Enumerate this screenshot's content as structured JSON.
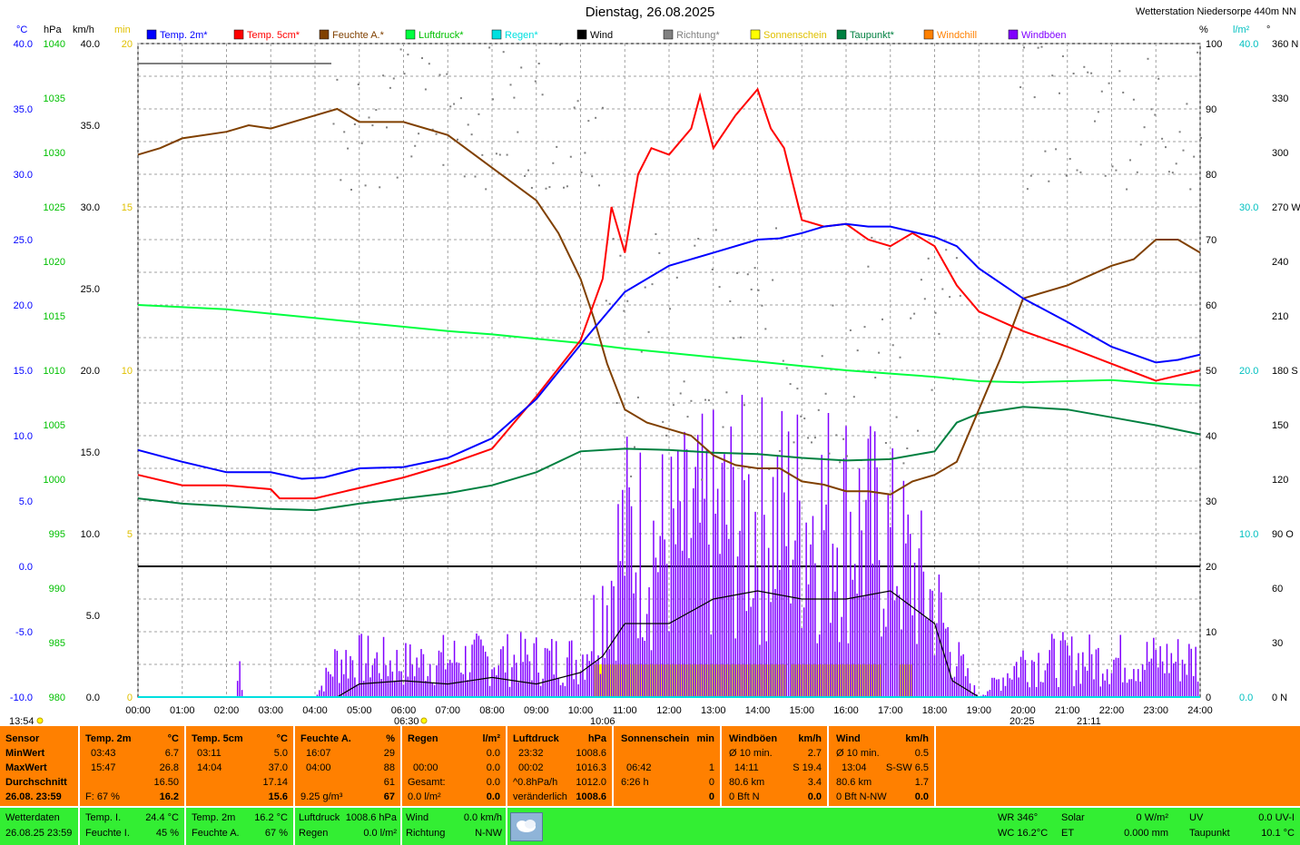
{
  "title": "Dienstag, 26.08.2025",
  "station": "Wetterstation Niedersorpe 440m NN",
  "legend": [
    {
      "label": "Temp. 2m*",
      "color": "#0000ff"
    },
    {
      "label": "Temp. 5cm*",
      "color": "#ff0000"
    },
    {
      "label": "Feuchte A.*",
      "color": "#804000"
    },
    {
      "label": "Luftdruck*",
      "color": "#00ff40"
    },
    {
      "label": "Regen*",
      "color": "#00e0e0"
    },
    {
      "label": "Wind",
      "color": "#000000"
    },
    {
      "label": "Richtung*",
      "color": "#808080"
    },
    {
      "label": "Sonnenschein",
      "color": "#ffff00"
    },
    {
      "label": "Taupunkt*",
      "color": "#008040"
    },
    {
      "label": "Windchill",
      "color": "#ff8000"
    },
    {
      "label": "Windböen",
      "color": "#8000ff"
    }
  ],
  "axes": {
    "temp": {
      "unit": "°C",
      "color": "#0000ff",
      "ticks": [
        "40.0",
        "35.0",
        "30.0",
        "25.0",
        "20.0",
        "15.0",
        "10.0",
        "5.0",
        "0.0",
        "-5.0",
        "-10.0"
      ]
    },
    "pressure": {
      "unit": "hPa",
      "color": "#00c000",
      "ticks": [
        "1040",
        "1035",
        "1030",
        "1025",
        "1020",
        "1015",
        "1010",
        "1005",
        "1000",
        "995",
        "990",
        "985",
        "980"
      ]
    },
    "wind": {
      "unit": "km/h",
      "color": "#000000",
      "ticks": [
        "40.0",
        "35.0",
        "30.0",
        "25.0",
        "20.0",
        "15.0",
        "10.0",
        "5.0",
        "0.0"
      ]
    },
    "sun": {
      "unit": "min",
      "color": "#e0c000",
      "ticks": [
        "20",
        "15",
        "10",
        "5",
        "0"
      ]
    },
    "humidity": {
      "unit": "%",
      "color": "#000000",
      "ticks": [
        "100",
        "90",
        "80",
        "70",
        "60",
        "50",
        "40",
        "30",
        "20",
        "10",
        "0"
      ]
    },
    "rain": {
      "unit": "l/m²",
      "color": "#00c0c0",
      "ticks": [
        "40.0",
        "30.0",
        "20.0",
        "10.0",
        "0.0"
      ]
    },
    "direction": {
      "unit": "°",
      "color": "#000000",
      "ticks": [
        "360 N",
        "330",
        "300",
        "270 W",
        "240",
        "210",
        "180 S",
        "150",
        "120",
        "90 O",
        "60",
        "30",
        "0 N"
      ]
    },
    "x_ticks": [
      "00:00",
      "01:00",
      "02:00",
      "03:00",
      "04:00",
      "05:00",
      "06:00",
      "07:00",
      "08:00",
      "09:00",
      "10:00",
      "11:00",
      "12:00",
      "13:00",
      "14:00",
      "15:00",
      "16:00",
      "17:00",
      "18:00",
      "19:00",
      "20:00",
      "21:00",
      "22:00",
      "23:00",
      "24:00"
    ]
  },
  "markers": {
    "start": "13:54",
    "sunrise": "06:30",
    "sunmark": "10:06",
    "sunset": "20:25",
    "dusk": "21:11"
  },
  "chart_data": {
    "type": "line",
    "title": "Dienstag, 26.08.2025",
    "x_unit": "hour of day",
    "xlim": [
      0,
      24
    ],
    "series": [
      {
        "name": "Temp. 2m*",
        "axis": "°C",
        "color": "#0000ff",
        "points": [
          [
            0,
            8.9
          ],
          [
            1,
            8.0
          ],
          [
            2,
            7.2
          ],
          [
            3,
            7.2
          ],
          [
            3.7,
            6.7
          ],
          [
            4.2,
            6.8
          ],
          [
            5,
            7.5
          ],
          [
            6,
            7.6
          ],
          [
            7,
            8.3
          ],
          [
            8,
            9.8
          ],
          [
            9,
            12.8
          ],
          [
            9.6,
            15.3
          ],
          [
            10.2,
            17.8
          ],
          [
            11,
            21.0
          ],
          [
            12,
            23.0
          ],
          [
            13,
            24.0
          ],
          [
            14,
            25.0
          ],
          [
            14.5,
            25.1
          ],
          [
            15,
            25.5
          ],
          [
            15.5,
            26.0
          ],
          [
            16,
            26.2
          ],
          [
            16.5,
            26.0
          ],
          [
            17,
            26.0
          ],
          [
            17.5,
            25.6
          ],
          [
            18,
            25.2
          ],
          [
            18.5,
            24.5
          ],
          [
            19,
            22.8
          ],
          [
            20,
            20.5
          ],
          [
            21,
            18.7
          ],
          [
            22,
            16.8
          ],
          [
            22.5,
            16.2
          ],
          [
            23,
            15.6
          ],
          [
            23.5,
            15.8
          ],
          [
            24,
            16.2
          ]
        ]
      },
      {
        "name": "Temp. 5cm*",
        "axis": "°C",
        "color": "#ff0000",
        "points": [
          [
            0,
            7.0
          ],
          [
            1,
            6.2
          ],
          [
            2,
            6.2
          ],
          [
            3,
            5.9
          ],
          [
            3.2,
            5.2
          ],
          [
            4,
            5.2
          ],
          [
            5,
            6.0
          ],
          [
            6,
            6.8
          ],
          [
            7,
            7.8
          ],
          [
            8,
            9.0
          ],
          [
            9,
            13.0
          ],
          [
            10,
            17.3
          ],
          [
            10.5,
            22.0
          ],
          [
            10.7,
            27.5
          ],
          [
            11.0,
            24.0
          ],
          [
            11.3,
            30.0
          ],
          [
            11.6,
            32.0
          ],
          [
            12,
            31.5
          ],
          [
            12.5,
            33.5
          ],
          [
            12.7,
            36.0
          ],
          [
            13,
            32.0
          ],
          [
            13.5,
            34.5
          ],
          [
            14.0,
            36.5
          ],
          [
            14.3,
            33.5
          ],
          [
            14.6,
            32.0
          ],
          [
            15,
            26.5
          ],
          [
            15.5,
            26.0
          ],
          [
            16,
            26.2
          ],
          [
            16.5,
            25.0
          ],
          [
            17,
            24.5
          ],
          [
            17.5,
            25.5
          ],
          [
            18,
            24.5
          ],
          [
            18.5,
            21.5
          ],
          [
            19,
            19.5
          ],
          [
            20,
            18.0
          ],
          [
            21,
            16.8
          ],
          [
            22,
            15.5
          ],
          [
            23,
            14.2
          ],
          [
            24,
            15.0
          ]
        ]
      },
      {
        "name": "Feuchte A.*",
        "axis": "%",
        "color": "#804000",
        "points": [
          [
            0,
            83
          ],
          [
            0.5,
            84
          ],
          [
            1,
            85.5
          ],
          [
            2,
            86.5
          ],
          [
            2.5,
            87.5
          ],
          [
            3,
            87
          ],
          [
            4,
            89
          ],
          [
            4.5,
            90
          ],
          [
            5,
            88
          ],
          [
            6,
            88
          ],
          [
            7,
            86
          ],
          [
            8,
            81
          ],
          [
            9,
            76
          ],
          [
            9.5,
            71
          ],
          [
            10,
            64
          ],
          [
            10.3,
            58
          ],
          [
            10.6,
            51
          ],
          [
            11,
            44
          ],
          [
            11.5,
            42
          ],
          [
            12,
            41
          ],
          [
            12.5,
            40
          ],
          [
            13,
            37
          ],
          [
            13.5,
            35.5
          ],
          [
            14,
            35
          ],
          [
            14.5,
            35
          ],
          [
            15,
            33
          ],
          [
            15.5,
            32.5
          ],
          [
            16,
            31.5
          ],
          [
            16.5,
            31.5
          ],
          [
            17,
            31
          ],
          [
            17.5,
            33
          ],
          [
            18,
            34
          ],
          [
            18.5,
            36
          ],
          [
            19,
            44
          ],
          [
            19.5,
            52
          ],
          [
            20,
            61
          ],
          [
            21,
            63
          ],
          [
            22,
            66
          ],
          [
            22.5,
            67
          ],
          [
            23,
            70
          ],
          [
            23.5,
            70
          ],
          [
            24,
            68
          ]
        ]
      },
      {
        "name": "Luftdruck*",
        "axis": "hPa",
        "color": "#00ff40",
        "points": [
          [
            0,
            1016.0
          ],
          [
            1,
            1015.8
          ],
          [
            2,
            1015.6
          ],
          [
            3,
            1015.2
          ],
          [
            4,
            1014.8
          ],
          [
            5,
            1014.4
          ],
          [
            6,
            1014.0
          ],
          [
            7,
            1013.6
          ],
          [
            8,
            1013.3
          ],
          [
            9,
            1012.9
          ],
          [
            10,
            1012.5
          ],
          [
            11,
            1012.0
          ],
          [
            12,
            1011.6
          ],
          [
            13,
            1011.2
          ],
          [
            14,
            1010.8
          ],
          [
            15,
            1010.4
          ],
          [
            16,
            1010.0
          ],
          [
            17,
            1009.7
          ],
          [
            18,
            1009.4
          ],
          [
            19,
            1009.0
          ],
          [
            20,
            1008.9
          ],
          [
            21,
            1009.0
          ],
          [
            22,
            1009.1
          ],
          [
            23,
            1008.8
          ],
          [
            24,
            1008.6
          ]
        ]
      },
      {
        "name": "Taupunkt*",
        "axis": "°C",
        "color": "#008040",
        "points": [
          [
            0,
            5.2
          ],
          [
            1,
            4.8
          ],
          [
            2,
            4.6
          ],
          [
            3,
            4.4
          ],
          [
            4,
            4.3
          ],
          [
            5,
            4.8
          ],
          [
            6,
            5.2
          ],
          [
            7,
            5.6
          ],
          [
            8,
            6.2
          ],
          [
            9,
            7.2
          ],
          [
            10,
            8.8
          ],
          [
            11,
            9.0
          ],
          [
            12,
            8.9
          ],
          [
            13,
            8.7
          ],
          [
            14,
            8.6
          ],
          [
            15,
            8.3
          ],
          [
            16,
            8.1
          ],
          [
            17,
            8.2
          ],
          [
            18,
            8.8
          ],
          [
            18.5,
            11.0
          ],
          [
            19,
            11.7
          ],
          [
            20,
            12.2
          ],
          [
            21,
            12.0
          ],
          [
            22,
            11.4
          ],
          [
            23,
            10.8
          ],
          [
            24,
            10.1
          ]
        ]
      },
      {
        "name": "Wind",
        "axis": "km/h",
        "color": "#000000",
        "points": [
          [
            0,
            0
          ],
          [
            4.5,
            0
          ],
          [
            5,
            0.8
          ],
          [
            6,
            1.0
          ],
          [
            7,
            0.8
          ],
          [
            8,
            1.2
          ],
          [
            9,
            0.8
          ],
          [
            10,
            1.5
          ],
          [
            10.5,
            2.5
          ],
          [
            11,
            4.5
          ],
          [
            12,
            4.5
          ],
          [
            13,
            6.0
          ],
          [
            14,
            6.5
          ],
          [
            15,
            6.0
          ],
          [
            16,
            6.0
          ],
          [
            17,
            6.5
          ],
          [
            18,
            4.5
          ],
          [
            18.4,
            1.0
          ],
          [
            19,
            0
          ],
          [
            20,
            0
          ],
          [
            24,
            0
          ]
        ]
      },
      {
        "name": "Windböen",
        "axis": "km/h",
        "color": "#8000ff",
        "peak": 19.4,
        "points": [
          [
            0,
            0
          ],
          [
            2.2,
            0
          ],
          [
            2.3,
            3.5
          ],
          [
            2.4,
            0
          ],
          [
            4,
            0
          ],
          [
            4.5,
            4
          ],
          [
            5,
            4
          ],
          [
            6,
            3.5
          ],
          [
            7,
            4
          ],
          [
            8,
            4
          ],
          [
            9,
            4
          ],
          [
            10,
            4
          ],
          [
            10.5,
            10
          ],
          [
            11,
            17
          ],
          [
            12,
            16
          ],
          [
            13,
            18
          ],
          [
            14,
            19
          ],
          [
            15,
            19
          ],
          [
            16,
            19
          ],
          [
            17,
            16
          ],
          [
            18,
            10
          ],
          [
            18.5,
            4
          ],
          [
            19,
            0
          ],
          [
            19.5,
            2
          ],
          [
            20,
            4
          ],
          [
            21,
            4
          ],
          [
            22,
            4
          ],
          [
            23,
            4
          ],
          [
            24,
            4
          ]
        ]
      },
      {
        "name": "Sonnenschein",
        "axis": "min",
        "color": "#ffff00",
        "intervals": [
          [
            10.3,
            14.65
          ],
          [
            14.75,
            16.8
          ],
          [
            17.2,
            17.5
          ]
        ]
      },
      {
        "name": "Regen*",
        "axis": "l/m²",
        "color": "#00e0e0",
        "points": [
          [
            0,
            0
          ],
          [
            24,
            0
          ]
        ]
      }
    ]
  },
  "summary": {
    "sensor": {
      "label": "Sensor",
      "min": "MinWert",
      "max": "MaxWert",
      "avg": "Durchschnitt",
      "date": "26.08. 23:59"
    },
    "temp2m": {
      "header": "Temp. 2m",
      "unit": "°C",
      "min_time": "03:43",
      "min_val": "6.7",
      "max_time": "15:47",
      "max_val": "26.8",
      "avg": "16.50",
      "now_label": "F: 67 %",
      "now": "16.2"
    },
    "temp5cm": {
      "header": "Temp. 5cm",
      "unit": "°C",
      "min_time": "03:11",
      "min_val": "5.0",
      "max_time": "14:04",
      "max_val": "37.0",
      "avg": "17.14",
      "now": "15.6"
    },
    "humidity": {
      "header": "Feuchte A.",
      "unit": "%",
      "min_time": "16:07",
      "min_val": "29",
      "max_time": "04:00",
      "max_val": "88",
      "avg": "61",
      "abs": "9.25 g/m³",
      "now": "67"
    },
    "rain": {
      "header": "Regen",
      "unit": "l/m²",
      "r1_label": "",
      "r1": "0.0",
      "r2_label": "00:00",
      "r2": "0.0",
      "r3_label": "Gesamt:",
      "r3": "0.0",
      "r4_label": "0.0 l/m²",
      "now": "0.0"
    },
    "pressure": {
      "header": "Luftdruck",
      "unit": "hPa",
      "min_time": "23:32",
      "min_val": "1008.6",
      "max_time": "00:02",
      "max_val": "1016.3",
      "trend": "^0.8hPa/h",
      "avg": "1012.0",
      "state": "veränderlich",
      "now": "1008.6"
    },
    "sun": {
      "header": "Sonnenschein",
      "unit": "min",
      "r2_label": "06:42",
      "r2": "1",
      "r3_label": "6:26 h",
      "r3": "0",
      "now": "0"
    },
    "gusts": {
      "header": "Windböen",
      "unit": "km/h",
      "r1_label": "Ø 10 min.",
      "r1": "2.7",
      "r2_label": "14:11",
      "r2": "S 19.4",
      "r3_label": "80.6 km",
      "r3": "3.4",
      "r4_label": "0 Bft N",
      "now": "0.0"
    },
    "wind": {
      "header": "Wind",
      "unit": "km/h",
      "r1_label": "Ø 10 min.",
      "r1": "0.5",
      "r2_label": "13:04",
      "r2": "S-SW 6.5",
      "r3_label": "80.6 km",
      "r3": "1.7",
      "r4_label": "0 Bft N-NW",
      "now": "0.0"
    }
  },
  "footer": {
    "wd_label": "Wetterdaten",
    "wd_date": "26.08.25 23:59",
    "ti_label": "Temp. I.",
    "ti_val": "24.4 °C",
    "fi_label": "Feuchte I.",
    "fi_val": "45 %",
    "t2_label": "Temp. 2m",
    "t2_val": "16.2 °C",
    "fa_label": "Feuchte A.",
    "fa_val": "67 %",
    "lp_label": "Luftdruck",
    "lp_val": "1008.6 hPa",
    "rg_label": "Regen",
    "rg_val": "0.0 l/m²",
    "wi_label": "Wind",
    "wi_val": "0.0 km/h",
    "ri_label": "Richtung",
    "ri_val": "N-NW",
    "wr": "WR 346°",
    "wc": "WC 16.2°C",
    "so_label": "Solar",
    "so_val": "0 W/m²",
    "et_label": "ET",
    "et_val": "0.000 mm",
    "uv_label": "UV",
    "uv_val": "0.0 UV-I",
    "tp_label": "Taupunkt",
    "tp_val": "10.1 °C",
    "icon": "weather-cloud-icon"
  }
}
